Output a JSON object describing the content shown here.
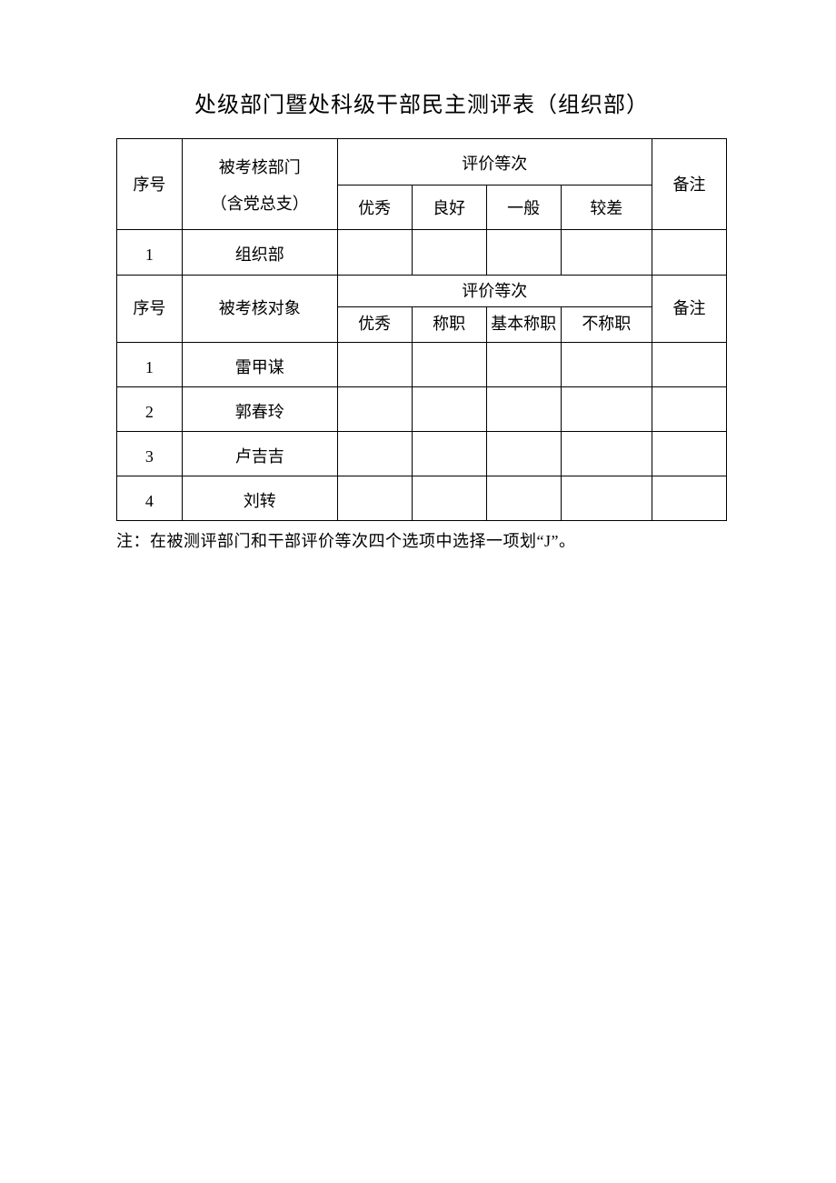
{
  "title": "处级部门暨处科级干部民主测评表（组织部）",
  "section1": {
    "seq_header": "序号",
    "dept_header_line1": "被考核部门",
    "dept_header_line2": "（含党总支）",
    "rating_group": "评价等次",
    "remark_header": "备注",
    "ratings": [
      "优秀",
      "良好",
      "一般",
      "较差"
    ],
    "rows": [
      {
        "seq": "1",
        "name": "组织部"
      }
    ]
  },
  "section2": {
    "seq_header": "序号",
    "subject_header": "被考核对象",
    "rating_group": "评价等次",
    "remark_header": "备注",
    "ratings": [
      "优秀",
      "称职",
      "基本称职",
      "不称职"
    ],
    "rows": [
      {
        "seq": "1",
        "name": "雷甲谋"
      },
      {
        "seq": "2",
        "name": "郭春玲"
      },
      {
        "seq": "3",
        "name": "卢吉吉"
      },
      {
        "seq": "4",
        "name": "刘转"
      }
    ]
  },
  "footnote": "注：在被测评部门和干部评价等次四个选项中选择一项划“J”。",
  "table_style": {
    "border_color": "#000000",
    "background_color": "#ffffff",
    "text_color": "#000000",
    "title_fontsize": 24,
    "body_fontsize": 18,
    "columns": {
      "seq_width": 63,
      "name_width": 150,
      "rating_width": 72,
      "rating_wide_width": 88,
      "remark_width": 72
    }
  }
}
